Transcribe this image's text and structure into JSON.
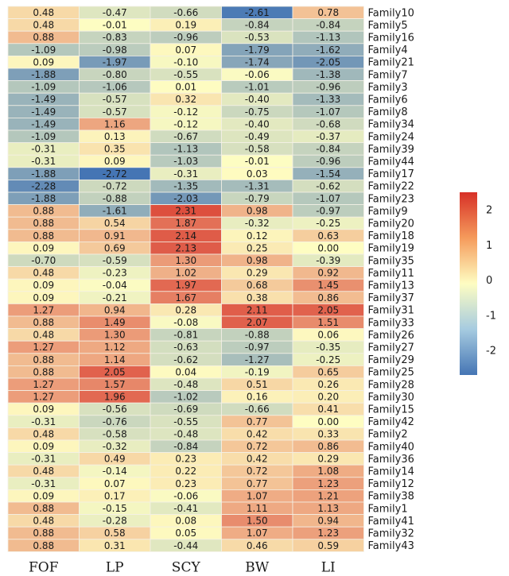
{
  "chart_data": {
    "type": "heatmap",
    "title": "",
    "columns": [
      "FOF",
      "LP",
      "SCY",
      "BW",
      "LI"
    ],
    "rows": [
      "Family10",
      "Family5",
      "Family16",
      "Family4",
      "Family21",
      "Family7",
      "Family3",
      "Family6",
      "Family8",
      "Family34",
      "Family24",
      "Family39",
      "Family44",
      "Family17",
      "Family22",
      "Family23",
      "Family9",
      "Family20",
      "Family18",
      "Family19",
      "Family35",
      "Family11",
      "Family13",
      "Family37",
      "Family31",
      "Family33",
      "Family26",
      "Family27",
      "Family29",
      "Family25",
      "Family28",
      "Family30",
      "Family15",
      "Family42",
      "Family2",
      "Family40",
      "Family36",
      "Family14",
      "Family12",
      "Family38",
      "Family1",
      "Family41",
      "Family32",
      "Family43"
    ],
    "values": [
      [
        0.48,
        -0.47,
        -0.66,
        -2.61,
        0.78
      ],
      [
        0.48,
        -0.01,
        0.19,
        -0.84,
        -0.84
      ],
      [
        0.88,
        -0.83,
        -0.96,
        -0.53,
        -1.13
      ],
      [
        -1.09,
        -0.98,
        0.07,
        -1.79,
        -1.62
      ],
      [
        0.09,
        -1.97,
        -0.1,
        -1.74,
        -2.05
      ],
      [
        -1.88,
        -0.8,
        -0.55,
        -0.06,
        -1.38
      ],
      [
        -1.09,
        -1.06,
        0.01,
        -1.01,
        -0.96
      ],
      [
        -1.49,
        -0.57,
        0.32,
        -0.4,
        -1.33
      ],
      [
        -1.49,
        -0.57,
        -0.12,
        -0.75,
        -1.07
      ],
      [
        -1.49,
        1.16,
        -0.12,
        -0.4,
        -0.68
      ],
      [
        -1.09,
        0.13,
        -0.67,
        -0.49,
        -0.37
      ],
      [
        -0.31,
        0.35,
        -1.13,
        -0.58,
        -0.84
      ],
      [
        -0.31,
        0.09,
        -1.03,
        -0.01,
        -0.96
      ],
      [
        -1.88,
        -2.72,
        -0.31,
        0.03,
        -1.54
      ],
      [
        -2.28,
        -0.72,
        -1.35,
        -1.31,
        -0.62
      ],
      [
        -1.88,
        -0.88,
        -2.03,
        -0.79,
        -1.07
      ],
      [
        0.88,
        -1.61,
        2.31,
        0.98,
        -0.97
      ],
      [
        0.88,
        0.54,
        1.87,
        -0.32,
        -0.25
      ],
      [
        0.88,
        0.91,
        2.14,
        0.12,
        0.63
      ],
      [
        0.09,
        0.69,
        2.13,
        0.25,
        0.0
      ],
      [
        -0.7,
        -0.59,
        1.3,
        0.98,
        -0.39
      ],
      [
        0.48,
        -0.23,
        1.02,
        0.29,
        0.92
      ],
      [
        0.09,
        -0.04,
        1.97,
        0.68,
        1.45
      ],
      [
        0.09,
        -0.21,
        1.67,
        0.38,
        0.86
      ],
      [
        1.27,
        0.94,
        0.28,
        2.11,
        2.05
      ],
      [
        0.88,
        1.49,
        -0.08,
        2.07,
        1.51
      ],
      [
        0.48,
        1.3,
        -0.81,
        -0.88,
        0.06
      ],
      [
        1.27,
        1.12,
        -0.63,
        -0.97,
        -0.35
      ],
      [
        0.88,
        1.14,
        -0.62,
        -1.27,
        -0.25
      ],
      [
        0.88,
        2.05,
        0.04,
        -0.19,
        0.65
      ],
      [
        1.27,
        1.57,
        -0.48,
        0.51,
        0.26
      ],
      [
        1.27,
        1.96,
        -1.02,
        0.16,
        0.2
      ],
      [
        0.09,
        -0.56,
        -0.69,
        -0.66,
        0.41
      ],
      [
        -0.31,
        -0.76,
        -0.55,
        0.77,
        0.0
      ],
      [
        0.48,
        -0.58,
        -0.48,
        0.42,
        0.33
      ],
      [
        0.09,
        -0.32,
        -0.84,
        0.72,
        0.86
      ],
      [
        -0.31,
        0.49,
        0.23,
        0.42,
        0.29
      ],
      [
        0.48,
        -0.14,
        0.22,
        0.72,
        1.08
      ],
      [
        -0.31,
        0.07,
        0.23,
        0.77,
        1.23
      ],
      [
        0.09,
        0.17,
        -0.06,
        1.07,
        1.21
      ],
      [
        0.88,
        -0.15,
        -0.41,
        1.11,
        1.13
      ],
      [
        0.48,
        -0.28,
        0.08,
        1.5,
        0.94
      ],
      [
        0.88,
        0.58,
        0.05,
        1.07,
        1.23
      ],
      [
        0.88,
        0.31,
        -0.44,
        0.46,
        0.59
      ]
    ],
    "value_labels": [
      [
        "0.48",
        "-0.47",
        "-0.66",
        "-2.61",
        "0.78"
      ],
      [
        "0.48",
        "-0.01",
        "0.19",
        "-0.84",
        "-0.84"
      ],
      [
        "0.88",
        "-0.83",
        "-0.96",
        "-0.53",
        "-1.13"
      ],
      [
        "-1.09",
        "-0.98",
        "0.07",
        "-1.79",
        "-1.62"
      ],
      [
        "0.09",
        "-1.97",
        "-0.10",
        "-1.74",
        "-2.05"
      ],
      [
        "-1.88",
        "-0.80",
        "-0.55",
        "-0.06",
        "-1.38"
      ],
      [
        "-1.09",
        "-1.06",
        "0.01",
        "-1.01",
        "-0.96"
      ],
      [
        "-1.49",
        "-0.57",
        "0.32",
        "-0.40",
        "-1.33"
      ],
      [
        "-1.49",
        "-0.57",
        "-0.12",
        "-0.75",
        "-1.07"
      ],
      [
        "-1.49",
        "1.16",
        "-0.12",
        "-0.40",
        "-0.68"
      ],
      [
        "-1.09",
        "0.13",
        "-0.67",
        "-0.49",
        "-0.37"
      ],
      [
        "-0.31",
        "0.35",
        "-1.13",
        "-0.58",
        "-0.84"
      ],
      [
        "-0.31",
        "0.09",
        "-1.03",
        "-0.01",
        "-0.96"
      ],
      [
        "-1.88",
        "-2.72",
        "-0.31",
        "0.03",
        "-1.54"
      ],
      [
        "-2.28",
        "-0.72",
        "-1.35",
        "-1.31",
        "-0.62"
      ],
      [
        "-1.88",
        "-0.88",
        "-2.03",
        "-0.79",
        "-1.07"
      ],
      [
        "0.88",
        "-1.61",
        "2.31",
        "0.98",
        "-0.97"
      ],
      [
        "0.88",
        "0.54",
        "1.87",
        "-0.32",
        "-0.25"
      ],
      [
        "0.88",
        "0.91",
        "2.14",
        "0.12",
        "0.63"
      ],
      [
        "0.09",
        "0.69",
        "2.13",
        "0.25",
        "0.00"
      ],
      [
        "-0.70",
        "-0.59",
        "1.30",
        "0.98",
        "-0.39"
      ],
      [
        "0.48",
        "-0.23",
        "1.02",
        "0.29",
        "0.92"
      ],
      [
        "0.09",
        "-0.04",
        "1.97",
        "0.68",
        "1.45"
      ],
      [
        "0.09",
        "-0.21",
        "1.67",
        "0.38",
        "0.86"
      ],
      [
        "1.27",
        "0.94",
        "0.28",
        "2.11",
        "2.05"
      ],
      [
        "0.88",
        "1.49",
        "-0.08",
        "2.07",
        "1.51"
      ],
      [
        "0.48",
        "1.30",
        "-0.81",
        "-0.88",
        "0.06"
      ],
      [
        "1.27",
        "1.12",
        "-0.63",
        "-0.97",
        "-0.35"
      ],
      [
        "0.88",
        "1.14",
        "-0.62",
        "-1.27",
        "-0.25"
      ],
      [
        "0.88",
        "2.05",
        "0.04",
        "-0.19",
        "0.65"
      ],
      [
        "1.27",
        "1.57",
        "-0.48",
        "0.51",
        "0.26"
      ],
      [
        "1.27",
        "1.96",
        "-1.02",
        "0.16",
        "0.20"
      ],
      [
        "0.09",
        "-0.56",
        "-0.69",
        "-0.66",
        "0.41"
      ],
      [
        "-0.31",
        "-0.76",
        "-0.55",
        "0.77",
        "0.00"
      ],
      [
        "0.48",
        "-0.58",
        "-0.48",
        "0.42",
        "0.33"
      ],
      [
        "0.09",
        "-0.32",
        "-0.84",
        "0.72",
        "0.86"
      ],
      [
        "-0.31",
        "0.49",
        "0.23",
        "0.42",
        "0.29"
      ],
      [
        "0.48",
        "-0.14",
        "0.22",
        "0.72",
        "1.08"
      ],
      [
        "-0.31",
        "0.07",
        "0.23",
        "0.77",
        "1.23"
      ],
      [
        "0.09",
        "0.17",
        "-0.06",
        "1.07",
        "1.21"
      ],
      [
        "0.88",
        "-0.15",
        "-0.41",
        "1.11",
        "1.13"
      ],
      [
        "0.48",
        "-0.28",
        "0.08",
        "1.50",
        "0.94"
      ],
      [
        "0.88",
        "0.58",
        "0.05",
        "1.07",
        "1.23"
      ],
      [
        "0.88",
        "0.31",
        "-0.44",
        "0.46",
        "0.59"
      ]
    ],
    "color_scale": {
      "min": -2.72,
      "max": 2.31,
      "low_color": "#4575b4",
      "mid_color": "#fefdc2",
      "high_color": "#d73027"
    },
    "legend": {
      "position": "right",
      "ticks": [
        2,
        1,
        0,
        -1,
        -2
      ],
      "tick_labels": [
        "2",
        "1",
        "0",
        "-1",
        "-2"
      ]
    }
  }
}
